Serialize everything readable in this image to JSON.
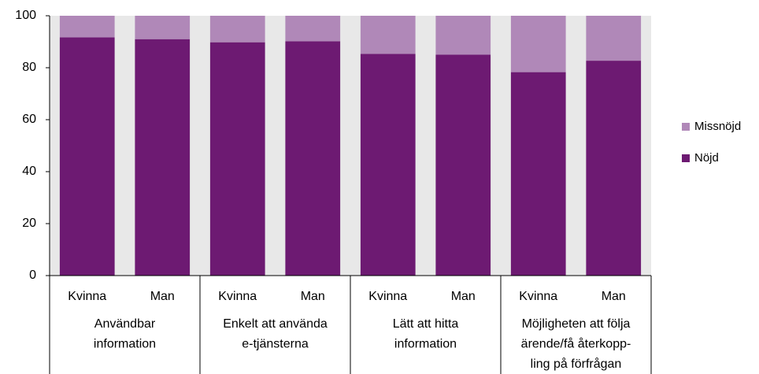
{
  "chart_data": {
    "type": "stacked_bar",
    "categories": [
      "Kvinna",
      "Man",
      "Kvinna",
      "Man",
      "Kvinna",
      "Man",
      "Kvinna",
      "Man"
    ],
    "groups": [
      [
        "Användbar",
        "information"
      ],
      [
        "Enkelt att använda",
        "e-tjänsterna"
      ],
      [
        "Lätt att hitta",
        "information"
      ],
      [
        "Möjligheten att följa",
        "ärende/få återkopp-",
        "ling på förfrågan"
      ]
    ],
    "series": [
      {
        "name": "Nöjd",
        "color": "#6d1a72",
        "values": [
          91.7,
          91,
          89.8,
          90.2,
          85.3,
          85,
          78.3,
          82.7
        ]
      },
      {
        "name": "Missnöjd",
        "color": "#b088b8",
        "values": [
          8.3,
          9,
          10.2,
          9.8,
          14.7,
          15,
          21.7,
          17.3
        ]
      }
    ],
    "ylim": [
      0,
      100
    ],
    "yticks": [
      0,
      20,
      40,
      60,
      80,
      100
    ],
    "background": "#e8e8e8",
    "legend": "right"
  }
}
